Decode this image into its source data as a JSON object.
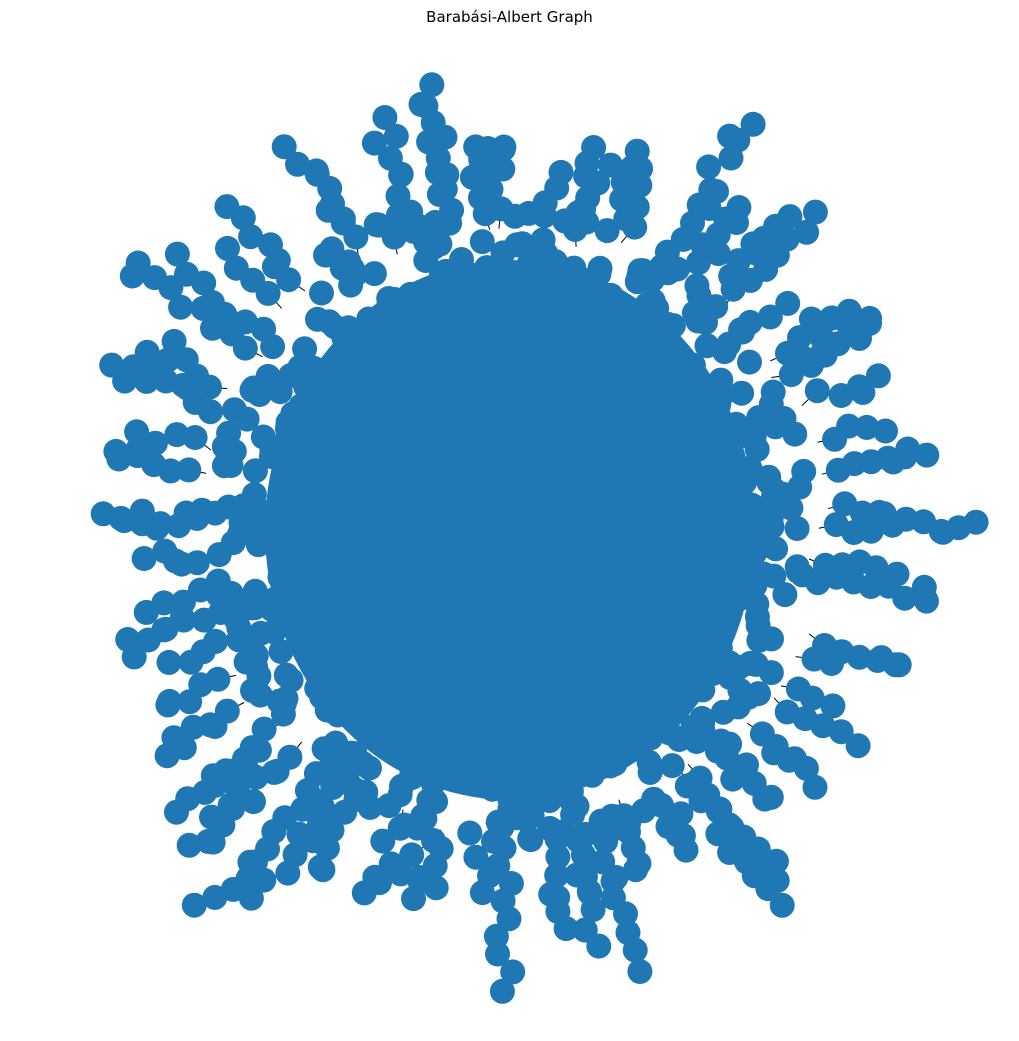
{
  "title": "Barabási-Albert Graph",
  "colors": {
    "node_fill": "#1f77b4",
    "edge_stroke": "#000000",
    "background": "#ffffff"
  },
  "graph": {
    "model": "barabasi-albert",
    "nodes_drawn": "dense",
    "edges_drawn": "dense"
  }
}
